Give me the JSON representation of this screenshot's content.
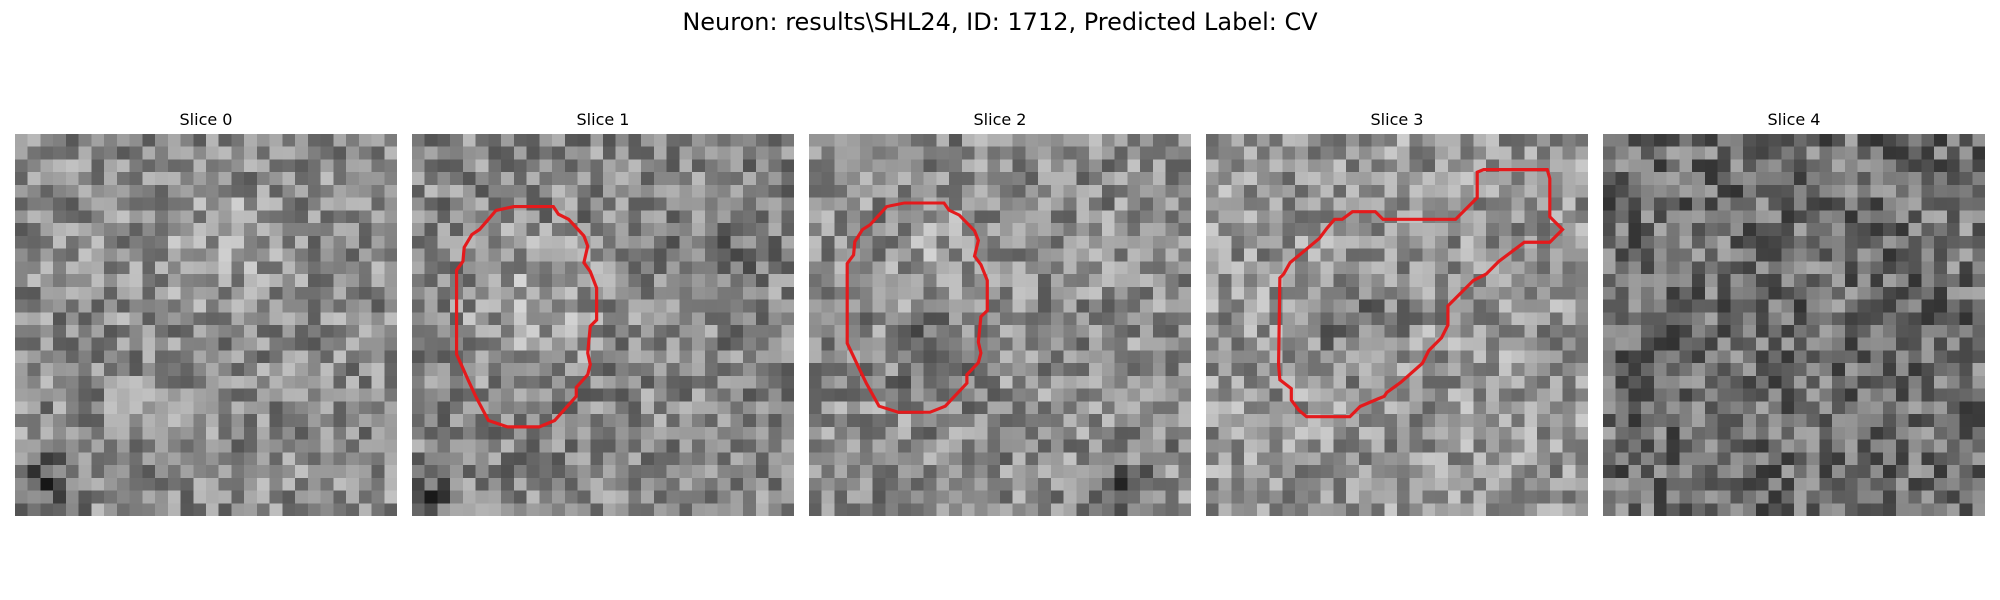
{
  "title": "Neuron: results\\SHL24, ID: 1712, Predicted Label: CV",
  "slices": [
    {
      "label": "Slice 0",
      "has_contour": false
    },
    {
      "label": "Slice 1",
      "has_contour": true
    },
    {
      "label": "Slice 2",
      "has_contour": true
    },
    {
      "label": "Slice 3",
      "has_contour": true
    },
    {
      "label": "Slice 4",
      "has_contour": false
    }
  ],
  "colors": {
    "contour": "#e41a1c",
    "background": "#ffffff"
  },
  "colormap": "gray"
}
